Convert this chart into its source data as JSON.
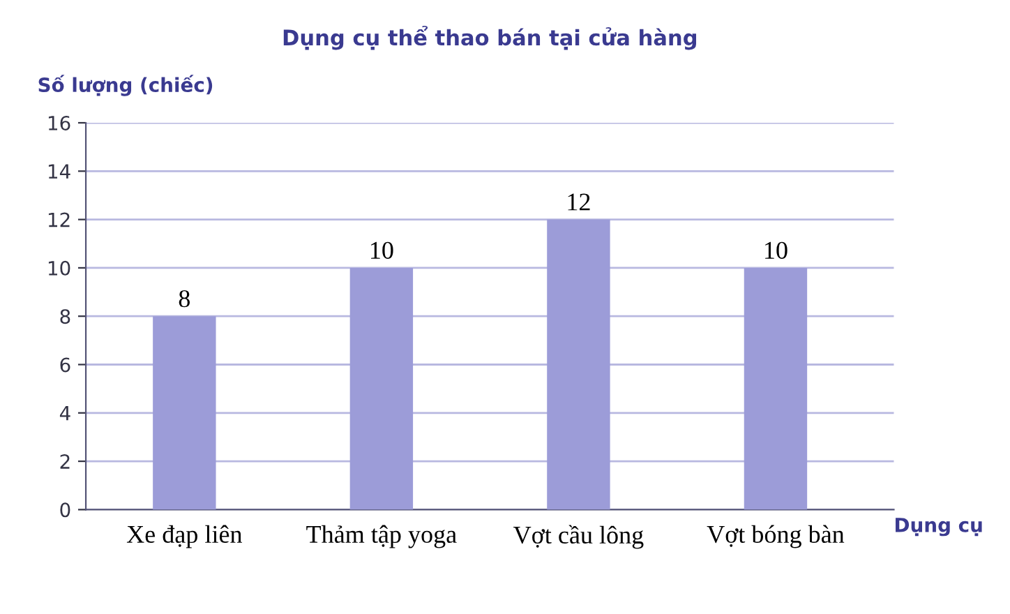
{
  "chart_data": {
    "type": "bar",
    "title": "Dụng cụ thể thao bán tại cửa hàng",
    "ylabel": "Số lượng (chiếc)",
    "xlabel": "Dụng cụ",
    "categories": [
      "Xe đạp liên",
      "Thảm tập yoga",
      "Vợt cầu lông",
      "Vợt bóng bàn"
    ],
    "values": [
      8,
      10,
      12,
      10
    ],
    "color": "#9c9cd8",
    "data_labels": true,
    "ylim": [
      0,
      16
    ],
    "yticks": [
      0,
      2,
      4,
      6,
      8,
      10,
      12,
      14,
      16
    ],
    "grid": "y",
    "legend": false
  }
}
